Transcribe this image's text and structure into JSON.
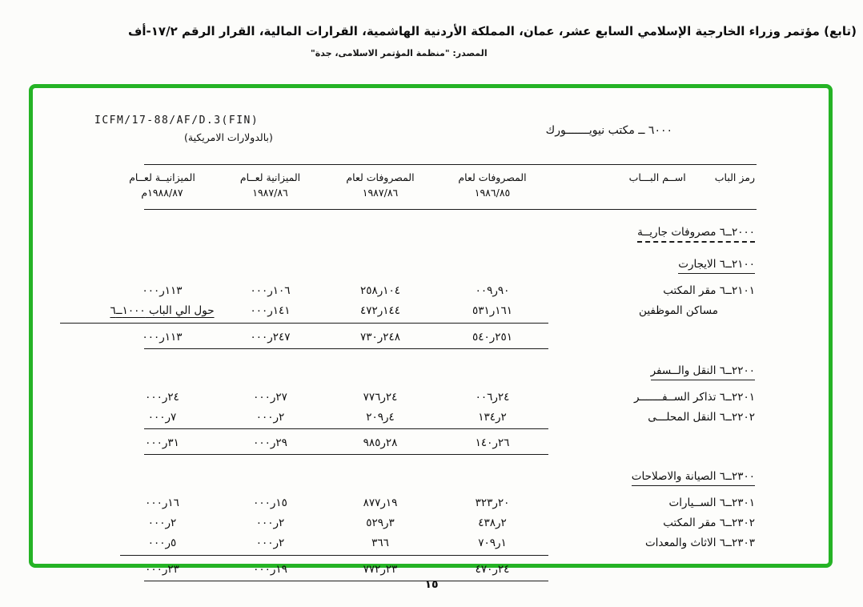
{
  "page_header": {
    "line1": "(تابع) مؤتمر وزراء الخارجية الإسلامي السابع عشر، عمان، المملكة الأردنية الهاشمية، القرارات المالية، القرار الرقم ١٧/٢-أف",
    "source_line": "المصدر: \"منظمة المؤتمر الاسلامى، جدة\""
  },
  "document": {
    "reference": "ICFM/17-88/AF/D.3(FIN)",
    "office_title": "٦٠٠٠ ــ مكتب نيويـــــــورك",
    "currency_note": "(بالدولارات الامريكية)",
    "frame_color": "#25b325"
  },
  "table": {
    "code_header": "رمز الباب",
    "name_header": "اســم البـــاب",
    "columns": [
      {
        "line1": "المصروفات لعام",
        "line2": "١٩٨٦/٨٥"
      },
      {
        "line1": "المصروفات لعام",
        "line2": "١٩٨٧/٨٦"
      },
      {
        "line1": "الميزانية لعــام",
        "line2": "١٩٨٧/٨٦"
      },
      {
        "line1": "الميزانيــة لعــام",
        "line2": "١٩٨٨/٨٧م"
      }
    ],
    "rows": [
      {
        "type": "section-dotted",
        "label": "٢٠٠٠ــ٦ مصروفات جاريــة"
      },
      {
        "type": "section",
        "label": "٢١٠٠ــ٦ الايجارت"
      },
      {
        "type": "item",
        "label": "٢١٠١ــ٦ مقر المكتب",
        "cells": [
          "٩٠ر٠٠٩",
          "١٠٤ر٢٥٨",
          "١٠٦ر٠٠٠",
          "١١٣ر٠٠٠"
        ]
      },
      {
        "type": "item",
        "label": "مساكن الموظفين",
        "indent": true,
        "cells": [
          "١٦١ر٥٣١",
          "١٤٤ر٤٧٢",
          "١٤١ر٠٠٠",
          "حول الي الباب ١٠٠٠ــ٦"
        ],
        "note_col": 3
      },
      {
        "type": "rule-wide"
      },
      {
        "type": "total",
        "cells": [
          "٢٥١ر٥٤٠",
          "٢٤٨ر٧٣٠",
          "٢٤٧ر٠٠٠",
          "١١٣ر٠٠٠"
        ]
      },
      {
        "type": "rule-narrow"
      },
      {
        "type": "section",
        "label": "٢٢٠٠ــ٦ النقل والــسفر"
      },
      {
        "type": "item",
        "label": "٢٢٠١ــ٦ تذاكر الســفـــــــر",
        "cells": [
          "٢٤ر٠٠٦",
          "٢٤ر٧٧٦",
          "٢٧ر٠٠٠",
          "٢٤ر٠٠٠"
        ]
      },
      {
        "type": "item",
        "label": "٢٢٠٢ــ٦ النقل المحلـــى",
        "cells": [
          "٢ر١٣٤",
          "٤ر٢٠٩",
          "٢ر٠٠٠",
          "٧ر٠٠٠"
        ]
      },
      {
        "type": "rule-narrow"
      },
      {
        "type": "total",
        "cells": [
          "٢٦ر١٤٠",
          "٢٨ر٩٨٥",
          "٢٩ر٠٠٠",
          "٣١ر٠٠٠"
        ]
      },
      {
        "type": "rule-narrow"
      },
      {
        "type": "section",
        "label": "٢٣٠٠ــ٦ الصيانة والاصلاحات"
      },
      {
        "type": "item",
        "label": "٢٣٠١ــ٦ الســيارات",
        "cells": [
          "٢٠ر٣٢٣",
          "١٩ر٨٧٧",
          "١٥ر٠٠٠",
          "١٦ر٠٠٠"
        ]
      },
      {
        "type": "item",
        "label": "٢٣٠٢ــ٦ مقر المكتب",
        "cells": [
          "٢ر٤٣٨",
          "٣ر٥٢٩",
          "٢ر٠٠٠",
          "٢ر٠٠٠"
        ]
      },
      {
        "type": "item",
        "label": "٢٣٠٣ــ٦ الاثاث والمعدات",
        "cells": [
          "١ر٧٠٩",
          "٣٦٦",
          "٢ر٠٠٠",
          "٥ر٠٠٠"
        ]
      },
      {
        "type": "rule-mid"
      },
      {
        "type": "total",
        "cells": [
          "٢٤ر٤٧٠",
          "٢٣ر٧٧٢",
          "١٩ر٠٠٠",
          "٢٣ر٠٠٠"
        ]
      },
      {
        "type": "rule-narrow"
      }
    ]
  },
  "page_number": "١٥"
}
